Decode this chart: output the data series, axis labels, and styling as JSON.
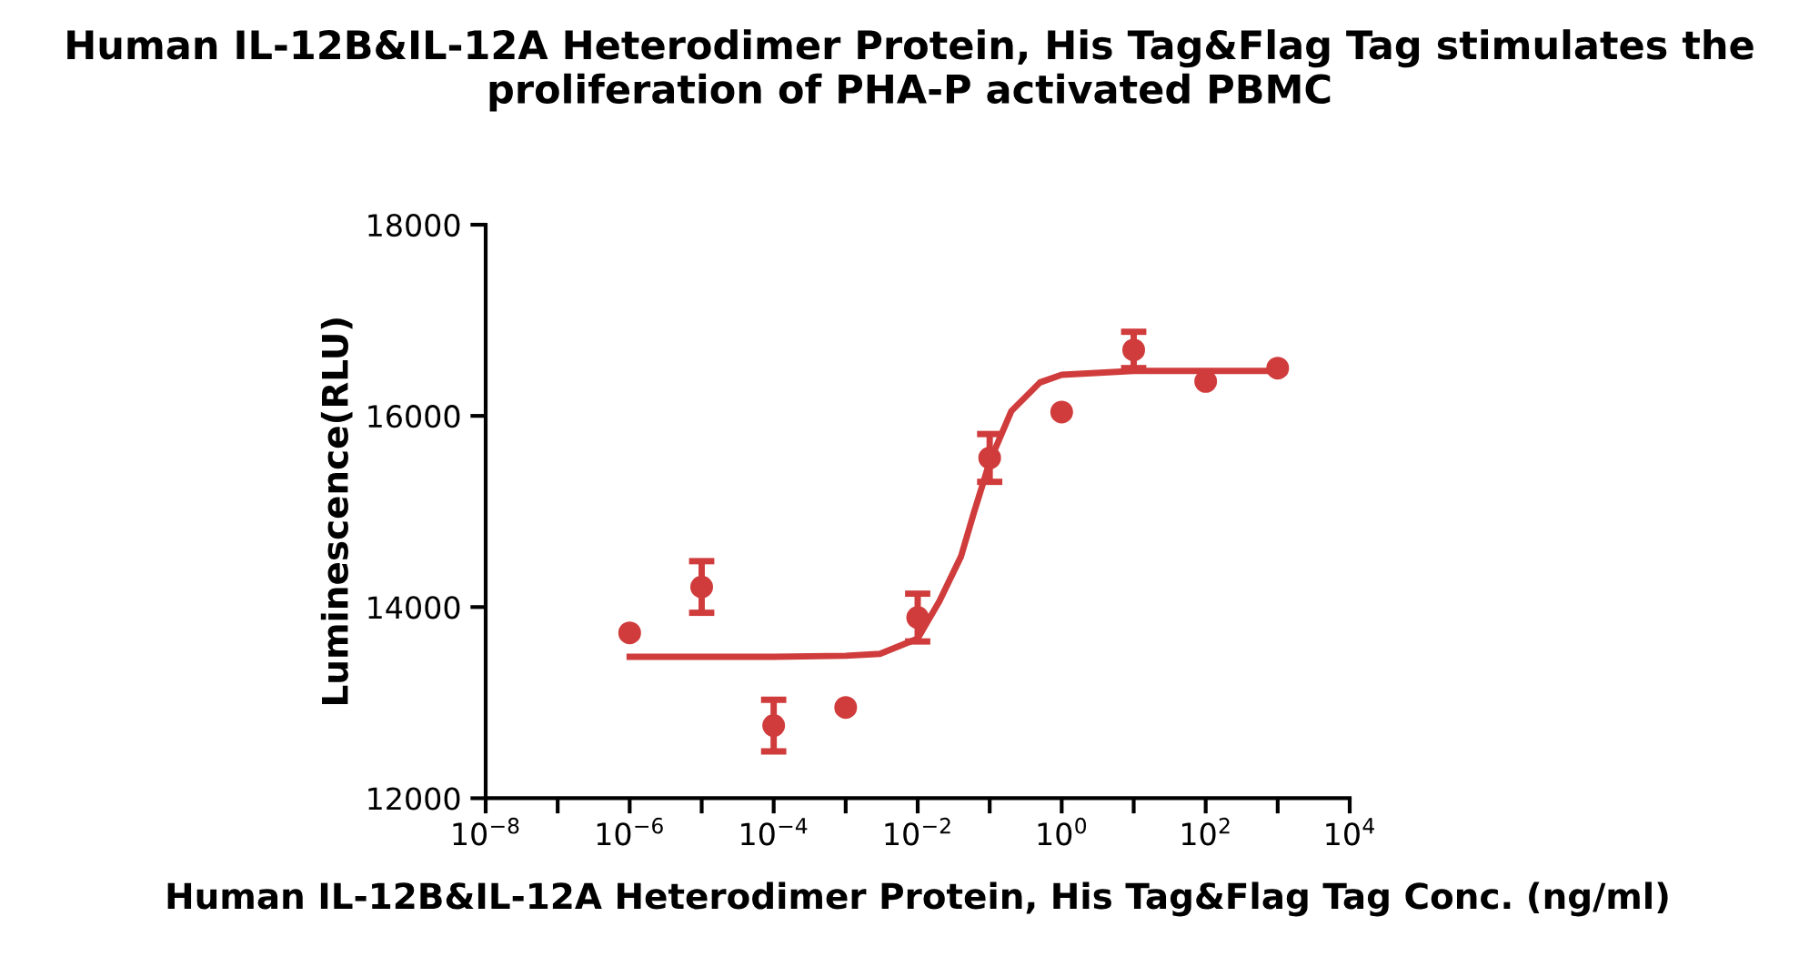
{
  "chart_data": {
    "type": "scatter",
    "title": "Human IL-12B&IL-12A Heterodimer Protein, His Tag&Flag Tag stimulates the proliferation of PHA-P activated PBMC",
    "xlabel": "Human IL-12B&IL-12A Heterodimer Protein, His Tag&Flag Tag Conc. (ng/ml)",
    "ylabel": "Luminescence(RLU)",
    "log": "x",
    "marker": "circle",
    "grid": false,
    "xlim": [
      1e-08,
      10000
    ],
    "ylim": [
      12000,
      18000
    ],
    "xticks": [
      {
        "value": 1e-08,
        "label": "10$^{−8}$"
      },
      {
        "value": 1e-07,
        "label": null
      },
      {
        "value": 1e-06,
        "label": "10$^{−6}$"
      },
      {
        "value": 1e-05,
        "label": null
      },
      {
        "value": 0.0001,
        "label": "10$^{−4}$"
      },
      {
        "value": 0.001,
        "label": null
      },
      {
        "value": 0.01,
        "label": "10$^{−2}$"
      },
      {
        "value": 0.1,
        "label": null
      },
      {
        "value": 1,
        "label": "10$^{0}$"
      },
      {
        "value": 10,
        "label": null
      },
      {
        "value": 100,
        "label": "10$^{2}$"
      },
      {
        "value": 1000,
        "label": null
      },
      {
        "value": 10000,
        "label": "10$^{4}$"
      }
    ],
    "yticks": [
      12000,
      14000,
      16000,
      18000
    ],
    "series": [
      {
        "color": "#d03c3c",
        "x": [
          1e-06,
          1e-05,
          0.0001,
          0.001,
          0.01,
          0.1,
          1,
          10,
          100,
          1000
        ],
        "values": [
          13730,
          14210,
          12760,
          12950,
          13890,
          15560,
          16040,
          16690,
          16360,
          16500
        ],
        "errors": [
          null,
          270,
          270,
          null,
          250,
          250,
          null,
          190,
          null,
          null
        ]
      },
      {
        "type": "line",
        "color": "#d03c3c",
        "marker": "none",
        "x": [
          1e-06,
          0.0001,
          0.001,
          0.003,
          0.01,
          0.02,
          0.04,
          0.06,
          0.1,
          0.2,
          0.5,
          1,
          10,
          1000
        ],
        "values": [
          13480,
          13480,
          13490,
          13510,
          13670,
          14060,
          14530,
          14980,
          15520,
          16050,
          16350,
          16430,
          16470,
          16470
        ]
      }
    ]
  }
}
